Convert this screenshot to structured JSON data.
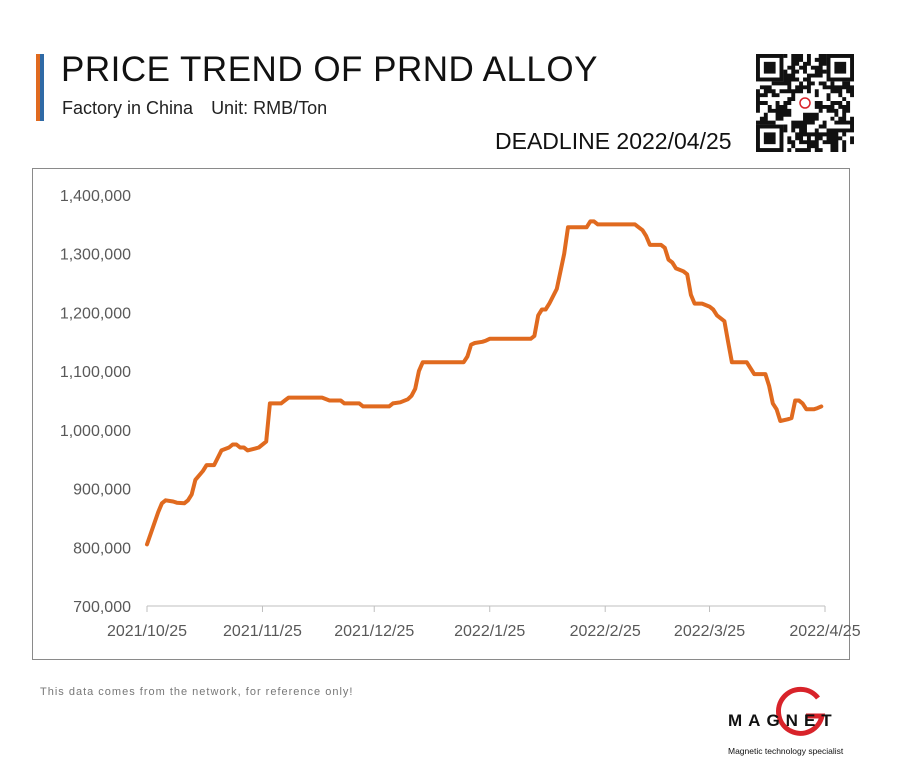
{
  "header": {
    "title": "PRICE TREND OF PRND ALLOY",
    "factory": "Factory in China",
    "unit": "Unit: RMB/Ton",
    "deadline": "DEADLINE 2022/04/25"
  },
  "footer": {
    "note": "This data comes from the network, for reference only!",
    "logo_text": "MAGNET",
    "logo_tagline": "Magnetic technology specialist"
  },
  "colors": {
    "line": "#e06a1f",
    "accent_blue": "#2f6aa6",
    "axis": "#bfbfbf",
    "tick_text": "#595959"
  },
  "icons": {
    "qr": "qr-code-icon",
    "logo": "magnet-logo-icon"
  },
  "chart_data": {
    "type": "line",
    "title": "PRICE TREND OF PRND ALLOY",
    "xlabel": "",
    "ylabel": "",
    "grid": false,
    "legend": "none",
    "ylim": [
      700000,
      1400000
    ],
    "yticks": [
      "700,000",
      "800,000",
      "900,000",
      "1,000,000",
      "1,100,000",
      "1,200,000",
      "1,300,000",
      "1,400,000"
    ],
    "xlim": [
      "2021-10-25",
      "2022-04-25"
    ],
    "xticks": [
      {
        "date": "2021-10-25",
        "label": "2021/10/25"
      },
      {
        "date": "2021-11-25",
        "label": "2021/11/25"
      },
      {
        "date": "2021-12-25",
        "label": "2021/12/25"
      },
      {
        "date": "2022-01-25",
        "label": "2022/1/25"
      },
      {
        "date": "2022-02-25",
        "label": "2022/2/25"
      },
      {
        "date": "2022-03-25",
        "label": "2022/3/25"
      },
      {
        "date": "2022-04-25",
        "label": "2022/4/25"
      }
    ],
    "series": [
      {
        "values": [
          [
            "2021-10-25",
            805000
          ],
          [
            "2021-10-28",
            860000
          ],
          [
            "2021-10-29",
            875000
          ],
          [
            "2021-10-30",
            880000
          ],
          [
            "2021-11-01",
            878000
          ],
          [
            "2021-11-02",
            876000
          ],
          [
            "2021-11-04",
            875000
          ],
          [
            "2021-11-05",
            880000
          ],
          [
            "2021-11-06",
            890000
          ],
          [
            "2021-11-07",
            915000
          ],
          [
            "2021-11-09",
            930000
          ],
          [
            "2021-11-10",
            940000
          ],
          [
            "2021-11-12",
            940000
          ],
          [
            "2021-11-14",
            965000
          ],
          [
            "2021-11-16",
            970000
          ],
          [
            "2021-11-17",
            975000
          ],
          [
            "2021-11-18",
            975000
          ],
          [
            "2021-11-19",
            970000
          ],
          [
            "2021-11-20",
            970000
          ],
          [
            "2021-11-21",
            965000
          ],
          [
            "2021-11-23",
            968000
          ],
          [
            "2021-11-24",
            970000
          ],
          [
            "2021-11-26",
            980000
          ],
          [
            "2021-11-27",
            1045000
          ],
          [
            "2021-11-30",
            1045000
          ],
          [
            "2021-12-01",
            1050000
          ],
          [
            "2021-12-02",
            1055000
          ],
          [
            "2021-12-11",
            1055000
          ],
          [
            "2021-12-13",
            1050000
          ],
          [
            "2021-12-16",
            1050000
          ],
          [
            "2021-12-17",
            1045000
          ],
          [
            "2021-12-21",
            1045000
          ],
          [
            "2021-12-22",
            1040000
          ],
          [
            "2021-12-29",
            1040000
          ],
          [
            "2021-12-30",
            1045000
          ],
          [
            "2022-01-01",
            1047000
          ],
          [
            "2022-01-03",
            1052000
          ],
          [
            "2022-01-04",
            1058000
          ],
          [
            "2022-01-05",
            1070000
          ],
          [
            "2022-01-06",
            1100000
          ],
          [
            "2022-01-07",
            1115000
          ],
          [
            "2022-01-18",
            1115000
          ],
          [
            "2022-01-19",
            1125000
          ],
          [
            "2022-01-20",
            1145000
          ],
          [
            "2022-01-21",
            1148000
          ],
          [
            "2022-01-23",
            1150000
          ],
          [
            "2022-01-24",
            1152000
          ],
          [
            "2022-01-25",
            1155000
          ],
          [
            "2022-02-05",
            1155000
          ],
          [
            "2022-02-06",
            1160000
          ],
          [
            "2022-02-07",
            1195000
          ],
          [
            "2022-02-08",
            1205000
          ],
          [
            "2022-02-09",
            1205000
          ],
          [
            "2022-02-10",
            1215000
          ],
          [
            "2022-02-12",
            1240000
          ],
          [
            "2022-02-14",
            1300000
          ],
          [
            "2022-02-15",
            1345000
          ],
          [
            "2022-02-20",
            1345000
          ],
          [
            "2022-02-21",
            1355000
          ],
          [
            "2022-02-22",
            1355000
          ],
          [
            "2022-02-23",
            1350000
          ],
          [
            "2022-03-05",
            1350000
          ],
          [
            "2022-03-06",
            1345000
          ],
          [
            "2022-03-07",
            1340000
          ],
          [
            "2022-03-08",
            1330000
          ],
          [
            "2022-03-09",
            1315000
          ],
          [
            "2022-03-12",
            1315000
          ],
          [
            "2022-03-13",
            1310000
          ],
          [
            "2022-03-14",
            1290000
          ],
          [
            "2022-03-15",
            1285000
          ],
          [
            "2022-03-16",
            1275000
          ],
          [
            "2022-03-18",
            1270000
          ],
          [
            "2022-03-19",
            1265000
          ],
          [
            "2022-03-20",
            1230000
          ],
          [
            "2022-03-21",
            1215000
          ],
          [
            "2022-03-23",
            1215000
          ],
          [
            "2022-03-25",
            1210000
          ],
          [
            "2022-03-26",
            1205000
          ],
          [
            "2022-03-27",
            1195000
          ],
          [
            "2022-03-29",
            1185000
          ],
          [
            "2022-03-30",
            1150000
          ],
          [
            "2022-03-31",
            1115000
          ],
          [
            "2022-04-04",
            1115000
          ],
          [
            "2022-04-05",
            1105000
          ],
          [
            "2022-04-06",
            1095000
          ],
          [
            "2022-04-09",
            1095000
          ],
          [
            "2022-04-10",
            1075000
          ],
          [
            "2022-04-11",
            1045000
          ],
          [
            "2022-04-12",
            1035000
          ],
          [
            "2022-04-13",
            1015000
          ],
          [
            "2022-04-15",
            1018000
          ],
          [
            "2022-04-16",
            1020000
          ],
          [
            "2022-04-17",
            1050000
          ],
          [
            "2022-04-18",
            1050000
          ],
          [
            "2022-04-19",
            1045000
          ],
          [
            "2022-04-20",
            1035000
          ],
          [
            "2022-04-22",
            1035000
          ],
          [
            "2022-04-23",
            1037000
          ],
          [
            "2022-04-24",
            1040000
          ]
        ]
      }
    ]
  }
}
